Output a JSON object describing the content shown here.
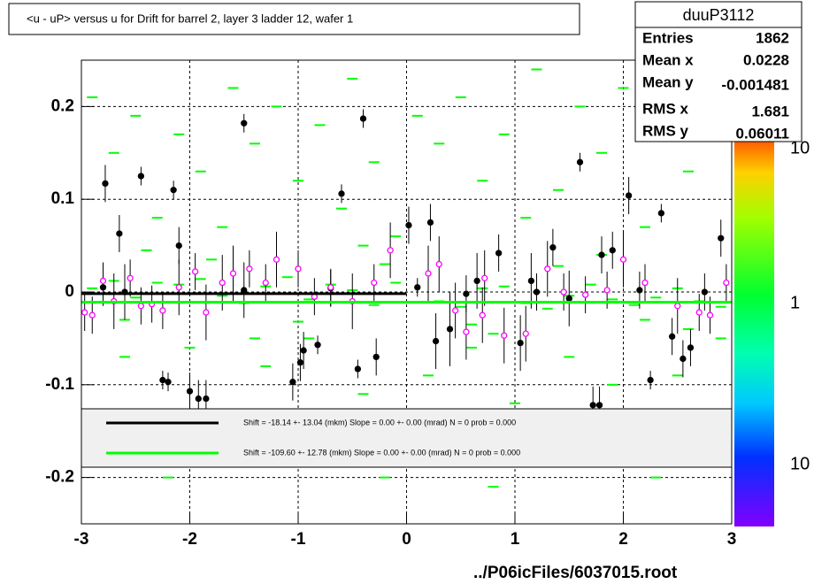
{
  "chart_data": {
    "type": "scatter",
    "title": "<u - uP>       versus   u for Drift for barrel 2, layer 3 ladder 12, wafer 1",
    "footer": "../P06icFiles/6037015.root",
    "stats": {
      "name": "duuP3112",
      "rows": [
        {
          "label": "Entries",
          "value": "1862"
        },
        {
          "label": "Mean x",
          "value": "0.0228"
        },
        {
          "label": "Mean y",
          "value": "-0.001481"
        },
        {
          "label": "RMS x",
          "value": "1.681"
        },
        {
          "label": "RMS y",
          "value": "0.06011"
        }
      ]
    },
    "palette_labels": [
      "10",
      "1",
      "10"
    ],
    "xlim": [
      -3,
      3
    ],
    "ylim": [
      -0.25,
      0.25
    ],
    "xticks": [
      -3,
      -2,
      -1,
      0,
      1,
      2,
      3
    ],
    "yticks": [
      -0.2,
      -0.1,
      0,
      0.1,
      0.2
    ],
    "grid": true,
    "cells": {
      "color": "#00ff00",
      "x": [
        -2.9,
        -2.8,
        -2.7,
        -2.6,
        -2.5,
        -2.4,
        -2.3,
        -2.2,
        -2.1,
        -2.0,
        -1.9,
        -1.8,
        -1.7,
        -1.6,
        -1.5,
        -1.4,
        -1.3,
        -1.2,
        -1.1,
        -1.0,
        -0.9,
        -0.8,
        -0.7,
        -0.6,
        -0.5,
        -0.4,
        -0.3,
        -0.2,
        -0.1,
        0.1,
        0.2,
        0.3,
        0.4,
        0.5,
        0.6,
        0.7,
        0.8,
        0.9,
        1.0,
        1.1,
        1.2,
        1.3,
        1.4,
        1.5,
        1.6,
        1.7,
        1.8,
        1.9,
        2.0,
        2.1,
        2.2,
        2.3,
        2.4,
        2.5,
        2.6,
        2.7,
        2.8,
        2.9,
        -2.9,
        -2.5,
        -2.1,
        -1.7,
        -1.3,
        -0.9,
        -0.5,
        -0.1,
        0.3,
        0.7,
        1.1,
        1.5,
        1.9,
        2.3,
        2.7,
        -2.7,
        -2.3,
        -1.9,
        -1.5,
        -1.1,
        -0.7,
        -0.3,
        0.5,
        0.9,
        1.3,
        1.7,
        2.1,
        2.5,
        2.9,
        -2.6,
        -1.8,
        -1.0,
        -0.2,
        0.6,
        1.4,
        2.2,
        -2.4,
        -1.4,
        -0.4,
        0.8,
        1.8,
        2.6
      ],
      "y": [
        0.21,
        -0.17,
        0.15,
        -0.07,
        0.19,
        -0.14,
        0.08,
        -0.2,
        0.17,
        -0.06,
        0.13,
        -0.18,
        0.07,
        0.22,
        -0.13,
        0.16,
        -0.08,
        0.2,
        -0.16,
        0.12,
        -0.05,
        0.18,
        -0.15,
        0.09,
        0.23,
        -0.11,
        0.14,
        -0.2,
        0.06,
        0.19,
        -0.09,
        0.16,
        -0.17,
        0.21,
        -0.06,
        0.12,
        -0.21,
        0.17,
        -0.12,
        0.08,
        0.24,
        -0.15,
        0.11,
        -0.07,
        0.2,
        -0.18,
        0.15,
        -0.1,
        0.22,
        -0.14,
        0.07,
        -0.2,
        0.18,
        -0.09,
        0.13,
        -0.16,
        0.21,
        -0.05,
        0.004,
        -0.006,
        0.008,
        -0.004,
        0.006,
        -0.008,
        0.002,
        0.01,
        -0.01,
        0.004,
        -0.012,
        -0.004,
        -0.008,
        -0.006,
        -0.01,
        0.012,
        0.01,
        0.014,
        -0.012,
        0.016,
        0.008,
        -0.014,
        -0.016,
        0.006,
        -0.018,
        0.008,
        -0.014,
        0.004,
        -0.016,
        -0.03,
        0.035,
        -0.032,
        0.03,
        -0.035,
        0.028,
        -0.03,
        0.045,
        -0.05,
        0.05,
        -0.045,
        0.04,
        -0.04
      ]
    },
    "series": [
      {
        "color": "#000000",
        "x": [
          -2.78,
          -2.65,
          -2.6,
          -2.45,
          -2.15,
          -2.1,
          -2.25,
          -2.2,
          -2.0,
          -1.92,
          -1.85,
          -1.5,
          -1.05,
          -0.98,
          -0.95,
          -0.82,
          -0.6,
          -0.45,
          -0.4,
          -0.28,
          0.02,
          0.22,
          0.27,
          0.4,
          0.65,
          0.85,
          1.05,
          1.15,
          1.35,
          1.5,
          1.6,
          1.8,
          1.9,
          2.05,
          2.35,
          2.45,
          2.55,
          2.62,
          2.25,
          2.9,
          1.72,
          1.78,
          -2.8,
          -1.5,
          -0.7,
          0.1,
          0.55,
          1.2,
          2.15,
          2.75
        ],
        "values": [
          0.117,
          0.063,
          0,
          0.125,
          0.11,
          0.05,
          -0.095,
          -0.097,
          -0.107,
          -0.115,
          -0.115,
          0.182,
          -0.097,
          -0.076,
          -0.063,
          -0.057,
          0.106,
          -0.083,
          0.187,
          -0.07,
          0.072,
          0.075,
          -0.053,
          -0.04,
          0.012,
          0.042,
          -0.055,
          0.012,
          0.048,
          -0.007,
          0.14,
          0.04,
          0.045,
          0.104,
          0.085,
          -0.048,
          -0.072,
          -0.06,
          -0.095,
          0.058,
          -0.122,
          -0.122,
          0.005,
          0.002,
          0.004,
          0.005,
          -0.002,
          0,
          0.002,
          0
        ],
        "errors": [
          0.02,
          0.02,
          0.03,
          0.01,
          0.01,
          0.02,
          0.01,
          0.01,
          0.02,
          0.02,
          0.02,
          0.01,
          0.02,
          0.02,
          0.02,
          0.01,
          0.01,
          0.01,
          0.01,
          0.02,
          0.02,
          0.02,
          0.03,
          0.04,
          0.03,
          0.02,
          0.03,
          0.03,
          0.02,
          0.03,
          0.01,
          0.02,
          0.02,
          0.02,
          0.01,
          0.02,
          0.02,
          0.02,
          0.01,
          0.02,
          0.02,
          0.02,
          0.02,
          0.03,
          0.02,
          0.01,
          0.02,
          0.02,
          0.02,
          0.02
        ]
      },
      {
        "color": "#ff00ff",
        "x": [
          -2.97,
          -2.9,
          -2.8,
          -2.7,
          -2.55,
          -2.45,
          -2.35,
          -2.25,
          -2.1,
          -1.95,
          -1.85,
          -1.7,
          -1.6,
          -1.45,
          -1.3,
          -1.2,
          -1.0,
          -0.85,
          -0.7,
          -0.5,
          -0.3,
          -0.15,
          0.2,
          0.3,
          0.45,
          0.55,
          0.7,
          0.72,
          0.9,
          1.1,
          1.3,
          1.45,
          1.65,
          1.85,
          2.0,
          2.2,
          2.5,
          2.7,
          2.8,
          2.95
        ],
        "values": [
          -0.022,
          -0.025,
          0.012,
          -0.01,
          0.015,
          -0.015,
          -0.013,
          -0.02,
          0.005,
          0.022,
          -0.022,
          0.01,
          0.02,
          0.025,
          0.01,
          0.035,
          0.025,
          -0.005,
          0.005,
          -0.01,
          0.01,
          0.045,
          0.02,
          0.03,
          -0.02,
          -0.043,
          -0.025,
          0.015,
          -0.047,
          -0.045,
          0.025,
          0,
          -0.003,
          0.002,
          0.035,
          0.01,
          -0.015,
          -0.022,
          -0.025,
          0.01
        ],
        "errors": [
          0.02,
          0.02,
          0.02,
          0.03,
          0.02,
          0.02,
          0.02,
          0.02,
          0.03,
          0.02,
          0.03,
          0.03,
          0.03,
          0.02,
          0.02,
          0.03,
          0.02,
          0.02,
          0.02,
          0.03,
          0.02,
          0.03,
          0.03,
          0.03,
          0.03,
          0.03,
          0.03,
          0.03,
          0.03,
          0.03,
          0.03,
          0.02,
          0.02,
          0.02,
          0.03,
          0.02,
          0.03,
          0.02,
          0.02,
          0.02
        ]
      }
    ],
    "fits": [
      {
        "label": "Shift =   -18.14 +- 13.04 (mkm) Slope =     0.00 +- 0.00 (mrad)  N = 0 prob = 0.000",
        "color": "#000000",
        "x": [
          -3,
          0
        ],
        "values": [
          -0.0018,
          -0.0018
        ]
      },
      {
        "label": "Shift =   -109.60 +- 12.78 (mkm) Slope =     0.00 +- 0.00 (mrad)  N = 0 prob = 0.000",
        "color": "#00ff00",
        "x": [
          -3,
          3
        ],
        "values": [
          -0.011,
          -0.011
        ]
      }
    ]
  }
}
